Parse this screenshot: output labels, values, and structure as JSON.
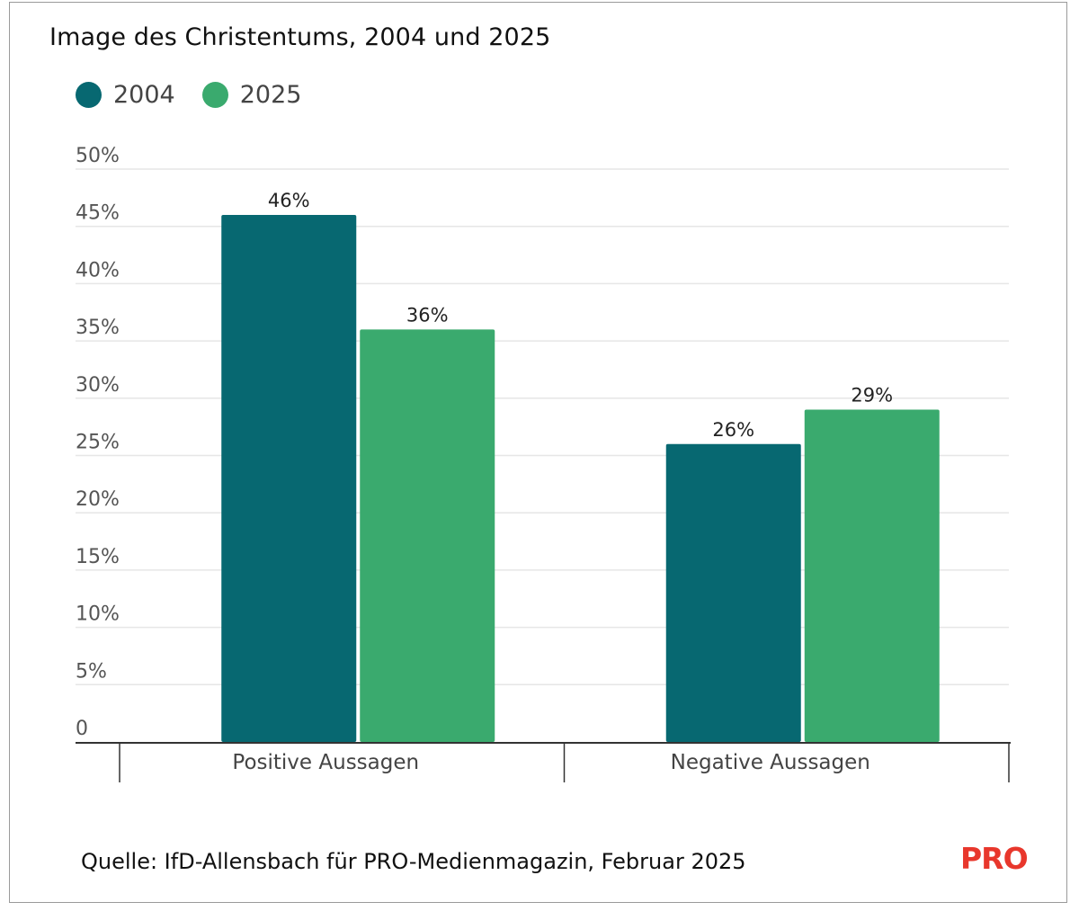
{
  "title": "Image des Christentums, 2004 und 2025",
  "source": "Quelle: IfD-Allensbach für PRO-Medienmagazin, Februar 2025",
  "logo_text": "PRO",
  "colors": {
    "series_2004": "#076871",
    "series_2025": "#3aaa6e",
    "logo": "#e8372c"
  },
  "chart_data": {
    "type": "bar",
    "categories": [
      "Positive Aussagen",
      "Negative Aussagen"
    ],
    "series": [
      {
        "name": "2004",
        "values": [
          46,
          26
        ],
        "labels": [
          "46%",
          "26%"
        ],
        "color": "#076871"
      },
      {
        "name": "2025",
        "values": [
          36,
          29
        ],
        "labels": [
          "36%",
          "29%"
        ],
        "color": "#3aaa6e"
      }
    ],
    "yticks": [
      0,
      5,
      10,
      15,
      20,
      25,
      30,
      35,
      40,
      45,
      50
    ],
    "ytick_labels": [
      "0",
      "5%",
      "10%",
      "15%",
      "20%",
      "25%",
      "30%",
      "35%",
      "40%",
      "45%",
      "50%"
    ],
    "ylim": [
      0,
      50
    ],
    "grid": true,
    "legend_position": "top-left",
    "title": "Image des Christentums, 2004 und 2025",
    "xlabel": "",
    "ylabel": ""
  }
}
